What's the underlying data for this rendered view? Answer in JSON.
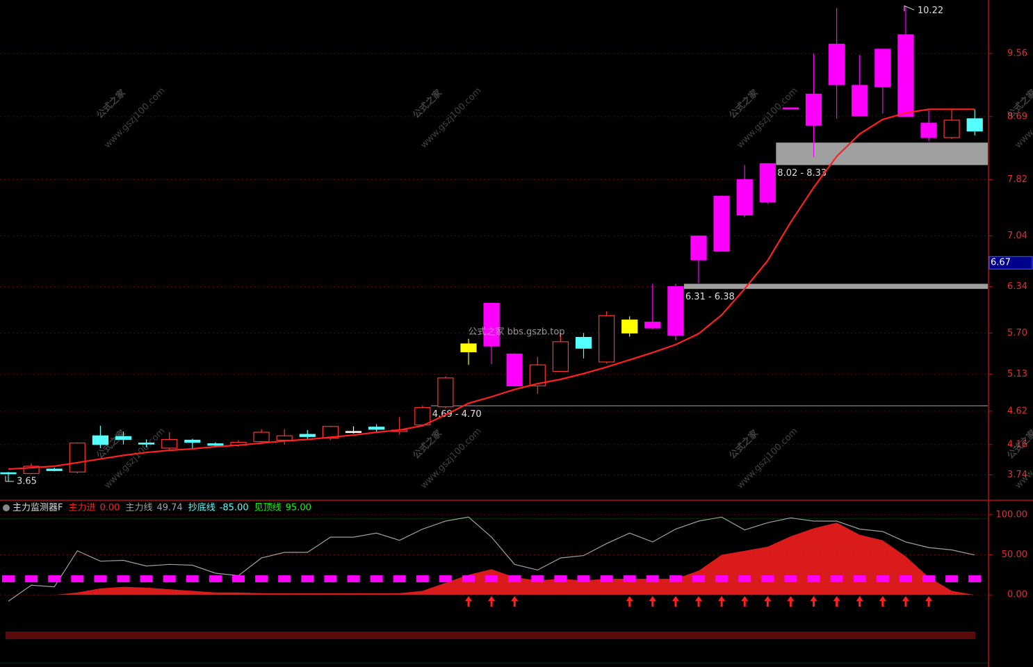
{
  "chart_data": [
    {
      "type": "candlestick",
      "open": [
        3.77,
        3.76,
        3.82,
        3.78,
        4.28,
        4.27,
        4.18,
        4.11,
        4.22,
        4.17,
        4.15,
        4.2,
        4.22,
        4.3,
        4.25,
        4.33,
        4.4,
        4.34,
        4.43,
        4.68,
        5.44,
        5.52,
        5.41,
        4.97,
        5.17,
        5.64,
        5.3,
        5.7,
        5.77,
        5.67,
        6.71,
        6.83,
        7.33,
        7.51,
        8.8,
        8.57,
        9.13,
        8.7,
        9.1,
        8.69,
        8.6,
        8.4,
        8.66
      ],
      "high": [
        3.78,
        3.9,
        3.84,
        4.19,
        4.42,
        4.34,
        4.23,
        4.33,
        4.24,
        4.19,
        4.22,
        4.37,
        4.37,
        4.36,
        4.42,
        4.41,
        4.44,
        4.54,
        4.7,
        5.1,
        5.62,
        6.11,
        5.42,
        5.37,
        5.7,
        5.7,
        6.0,
        5.93,
        6.38,
        6.38,
        7.05,
        7.6,
        8.02,
        8.04,
        8.81,
        9.56,
        10.19,
        9.54,
        9.62,
        10.22,
        8.78,
        8.8,
        8.79
      ],
      "low": [
        3.65,
        3.75,
        3.79,
        3.76,
        4.11,
        4.16,
        4.12,
        4.08,
        4.1,
        4.12,
        4.13,
        4.17,
        4.16,
        4.22,
        4.22,
        4.31,
        4.32,
        4.3,
        4.41,
        4.66,
        5.26,
        5.27,
        4.96,
        4.86,
        5.16,
        5.35,
        5.28,
        5.65,
        5.75,
        5.6,
        6.39,
        6.83,
        7.3,
        7.49,
        8.79,
        8.13,
        8.66,
        8.7,
        8.73,
        8.69,
        8.35,
        8.38,
        8.43
      ],
      "close": [
        3.77,
        3.86,
        3.8,
        4.18,
        4.16,
        4.23,
        4.17,
        4.23,
        4.19,
        4.15,
        4.19,
        4.33,
        4.28,
        4.27,
        4.41,
        4.34,
        4.37,
        4.36,
        4.67,
        5.08,
        5.55,
        6.11,
        4.97,
        5.26,
        5.58,
        5.49,
        5.94,
        5.88,
        5.85,
        6.34,
        7.04,
        7.59,
        7.82,
        8.04,
        8.81,
        9.0,
        9.69,
        9.12,
        9.62,
        9.82,
        8.4,
        8.64,
        8.49
      ],
      "colors": [
        "#54ffff",
        "#ff3232",
        "#54ffff",
        "#ff3232",
        "#54ffff",
        "#54ffff",
        "#54ffff",
        "#ff3232",
        "#54ffff",
        "#54ffff",
        "#ff3232",
        "#ff3232",
        "#ff3232",
        "#54ffff",
        "#ff3232",
        "#ffffff",
        "#54ffff",
        "#ff3232",
        "#ff3232",
        "#ff3232",
        "#ffff00",
        "#ff00ff",
        "#ff00ff",
        "#ff3232",
        "#ff3232",
        "#54ffff",
        "#ff3232",
        "#ffff00",
        "#ff00ff",
        "#ff00ff",
        "#ff00ff",
        "#ff00ff",
        "#ff00ff",
        "#ff00ff",
        "#ff00ff",
        "#ff00ff",
        "#ff00ff",
        "#ff00ff",
        "#ff00ff",
        "#ff00ff",
        "#ff00ff",
        "#ff3232",
        "#54ffff"
      ],
      "ma": {
        "color": "#ff2020",
        "values": [
          3.82,
          3.84,
          3.86,
          3.91,
          3.96,
          4.01,
          4.05,
          4.08,
          4.1,
          4.13,
          4.15,
          4.18,
          4.21,
          4.23,
          4.26,
          4.29,
          4.33,
          4.36,
          4.42,
          4.57,
          4.73,
          4.82,
          4.92,
          5.0,
          5.06,
          5.14,
          5.23,
          5.33,
          5.43,
          5.54,
          5.69,
          5.95,
          6.31,
          6.7,
          7.23,
          7.71,
          8.14,
          8.45,
          8.65,
          8.74,
          8.79,
          8.79,
          8.79
        ]
      },
      "ylim": [
        3.39,
        10.3
      ],
      "yticks": [
        3.74,
        4.16,
        4.62,
        5.13,
        {
          "value": 5.7,
          "label": "5.70"
        },
        6.34,
        7.04,
        7.82,
        8.69,
        9.56
      ],
      "price_tag": 6.67,
      "low_label": {
        "candle": 0,
        "value": 3.65,
        "label": "3.65"
      },
      "high_label": {
        "candle": 39,
        "value": 10.22,
        "label": "10.22"
      },
      "zones": [
        {
          "label": "8.02 - 8.33",
          "low": 8.02,
          "high": 8.33,
          "start": 33
        },
        {
          "label": "6.31 - 6.38",
          "low": 6.31,
          "high": 6.38,
          "start": 29
        },
        {
          "label": "4.69 - 4.70",
          "low": 4.69,
          "high": 4.7,
          "start": 18
        }
      ],
      "watermark": "公式之家 bbs.gszb.top",
      "watermark_small": [
        "公式之家",
        "www.gszj100.com"
      ]
    },
    {
      "type": "line",
      "title": "主力监测器F",
      "series": [
        {
          "name": "主力进",
          "value_label": "0.00",
          "color": "#ff2020",
          "fill": true,
          "values": [
            0,
            0,
            0,
            3,
            8,
            10,
            9,
            7,
            5,
            3,
            3,
            2,
            2,
            2,
            2,
            2,
            2,
            2,
            5,
            15,
            25,
            32,
            22,
            18,
            20,
            18,
            20,
            20,
            20,
            20,
            30,
            50,
            55,
            60,
            73,
            83,
            90,
            75,
            68,
            48,
            22,
            5,
            0
          ]
        },
        {
          "name": "主力线",
          "value_label": "49.74",
          "color": "#a0a0a0",
          "fill": false,
          "values": [
            -7.8,
            12,
            10,
            55,
            42,
            43,
            36,
            38,
            37,
            27,
            24,
            46,
            53,
            53,
            72,
            72,
            77,
            68,
            82,
            92,
            97,
            72,
            38,
            31,
            46,
            49,
            64,
            77,
            66,
            82,
            92,
            97,
            81,
            90,
            96,
            92,
            92,
            82,
            79,
            66,
            59,
            56,
            49.74
          ]
        }
      ],
      "levels": [
        {
          "name": "抄底线",
          "value_label": "-85.00",
          "value": -85,
          "color": "#54ffff"
        },
        {
          "name": "见顶线",
          "value_label": "95.00",
          "value": 95,
          "color": "#00ff00"
        }
      ],
      "dash_level": 20,
      "dash_color": "#ff00ff",
      "arrow_candles": [
        20,
        21,
        22,
        27,
        28,
        29,
        30,
        31,
        32,
        33,
        34,
        35,
        36,
        37,
        38,
        39,
        40
      ],
      "ylim": [
        -90,
        118
      ],
      "yticks": [
        {
          "value": 100,
          "label": "100.00"
        },
        {
          "value": 50,
          "label": "50.00"
        },
        {
          "value": 0,
          "label": "0.00"
        }
      ]
    }
  ]
}
